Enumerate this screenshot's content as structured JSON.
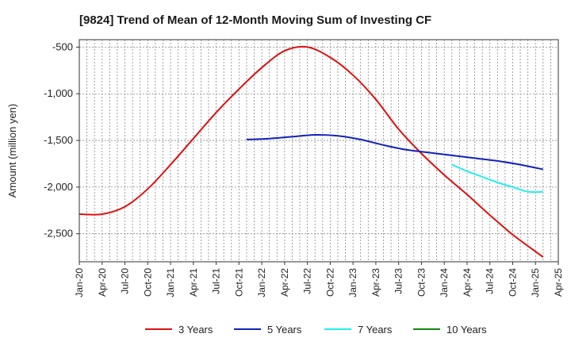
{
  "chart_data": {
    "type": "line",
    "title": "[9824]  Trend of Mean of 12-Month Moving Sum of Investing CF",
    "xlabel": "",
    "ylabel": "Amount (million yen)",
    "ylim": [
      -2800,
      -420
    ],
    "yticks": [
      -500,
      -1000,
      -1500,
      -2000,
      -2500
    ],
    "ytick_labels": [
      "-500",
      "-1,000",
      "-1,500",
      "-2,000",
      "-2,500"
    ],
    "x_start": "Jan-20",
    "x_months": 63,
    "xtick_labels": [
      "Jan-20",
      "Apr-20",
      "Jul-20",
      "Oct-20",
      "Jan-21",
      "Apr-21",
      "Jul-21",
      "Oct-21",
      "Jan-22",
      "Apr-22",
      "Jul-22",
      "Oct-22",
      "Jan-23",
      "Apr-23",
      "Jul-23",
      "Oct-23",
      "Jan-24",
      "Apr-24",
      "Jul-24",
      "Oct-24",
      "Jan-25",
      "Apr-25"
    ],
    "grid": true,
    "legend_position": "bottom",
    "series": [
      {
        "name": "3 Years",
        "color": "#dd1111",
        "points": [
          [
            0,
            -2290
          ],
          [
            3,
            -2290
          ],
          [
            6,
            -2210
          ],
          [
            9,
            -2020
          ],
          [
            12,
            -1760
          ],
          [
            15,
            -1480
          ],
          [
            18,
            -1200
          ],
          [
            21,
            -950
          ],
          [
            24,
            -720
          ],
          [
            27,
            -540
          ],
          [
            30,
            -500
          ],
          [
            33,
            -610
          ],
          [
            36,
            -800
          ],
          [
            39,
            -1060
          ],
          [
            42,
            -1380
          ],
          [
            45,
            -1640
          ],
          [
            48,
            -1870
          ],
          [
            51,
            -2080
          ],
          [
            54,
            -2300
          ],
          [
            57,
            -2510
          ],
          [
            60,
            -2690
          ],
          [
            61,
            -2750
          ]
        ]
      },
      {
        "name": "5 Years",
        "color": "#1122bb",
        "points": [
          [
            22,
            -1490
          ],
          [
            25,
            -1480
          ],
          [
            28,
            -1460
          ],
          [
            31,
            -1440
          ],
          [
            34,
            -1450
          ],
          [
            37,
            -1490
          ],
          [
            40,
            -1550
          ],
          [
            43,
            -1600
          ],
          [
            46,
            -1630
          ],
          [
            49,
            -1660
          ],
          [
            52,
            -1690
          ],
          [
            55,
            -1720
          ],
          [
            58,
            -1760
          ],
          [
            61,
            -1810
          ]
        ]
      },
      {
        "name": "7 Years",
        "color": "#22eeee",
        "points": [
          [
            49,
            -1760
          ],
          [
            51,
            -1830
          ],
          [
            53,
            -1890
          ],
          [
            55,
            -1950
          ],
          [
            57,
            -2000
          ],
          [
            59,
            -2050
          ],
          [
            61,
            -2050
          ]
        ]
      },
      {
        "name": "10 Years",
        "color": "#118811",
        "points": []
      }
    ]
  }
}
